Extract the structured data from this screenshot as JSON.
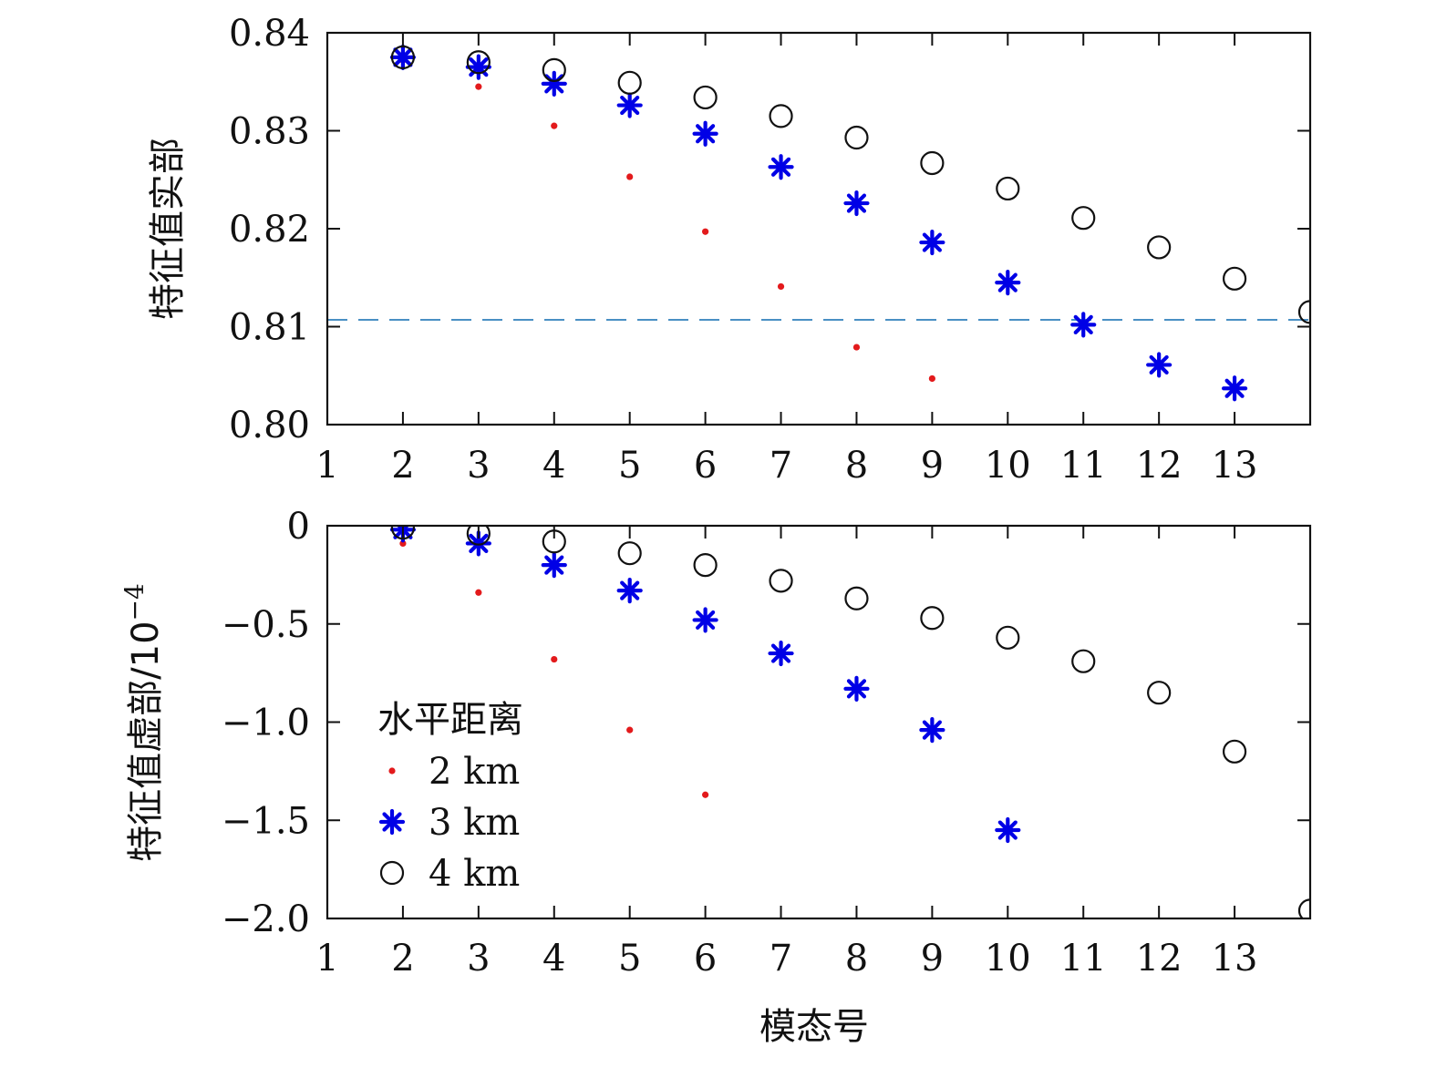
{
  "chart_data": [
    {
      "type": "scatter",
      "x": [
        2,
        3,
        4,
        5,
        6,
        7,
        8,
        9,
        10,
        11,
        12,
        13,
        14
      ],
      "xlim": [
        1,
        14
      ],
      "xticks": [
        1,
        2,
        3,
        4,
        5,
        6,
        7,
        8,
        9,
        10,
        11,
        12,
        13
      ],
      "xtick_labels": [
        "1",
        "2",
        "3",
        "4",
        "5",
        "6",
        "7",
        "8",
        "9",
        "10",
        "11",
        "12",
        "13"
      ],
      "ylim": [
        0.8,
        0.84
      ],
      "yticks": [
        0.8,
        0.81,
        0.82,
        0.83,
        0.84
      ],
      "ytick_labels": [
        "0.80",
        "0.81",
        "0.82",
        "0.83",
        "0.84"
      ],
      "ylabel": "特征值实部",
      "xlabel": "",
      "reference_line": {
        "y": 0.8107,
        "style": "dashed",
        "color": "#4a8fc4"
      },
      "series": [
        {
          "name": "2 km",
          "marker": "dot",
          "color": "#e31a1c",
          "values": [
            0.8372,
            0.8345,
            0.8305,
            0.8253,
            0.8197,
            0.8141,
            0.8079,
            0.8047
          ]
        },
        {
          "name": "3 km",
          "marker": "star",
          "color": "#0000e6",
          "values": [
            0.8375,
            0.8365,
            0.8348,
            0.8326,
            0.8297,
            0.8263,
            0.8226,
            0.8186,
            0.8145,
            0.8102,
            0.8061,
            0.8037
          ]
        },
        {
          "name": "4 km",
          "marker": "circle",
          "color": "#111111",
          "values": [
            0.8375,
            0.837,
            0.8362,
            0.8349,
            0.8334,
            0.8315,
            0.8293,
            0.8267,
            0.8241,
            0.8211,
            0.8181,
            0.8149,
            0.8115
          ]
        }
      ]
    },
    {
      "type": "scatter",
      "x": [
        2,
        3,
        4,
        5,
        6,
        7,
        8,
        9,
        10,
        11,
        12,
        13,
        14
      ],
      "xlim": [
        1,
        14
      ],
      "xticks": [
        1,
        2,
        3,
        4,
        5,
        6,
        7,
        8,
        9,
        10,
        11,
        12,
        13
      ],
      "xtick_labels": [
        "1",
        "2",
        "3",
        "4",
        "5",
        "6",
        "7",
        "8",
        "9",
        "10",
        "11",
        "12",
        "13"
      ],
      "ylim": [
        -2.0,
        0
      ],
      "yticks": [
        0,
        -0.5,
        -1.0,
        -1.5,
        -2.0
      ],
      "ytick_labels": [
        "0",
        "−0.5",
        "−1.0",
        "−1.5",
        "−2.0"
      ],
      "ylabel": "特征值虚部/10",
      "ylabel_exponent": "−4",
      "xlabel": "模态号",
      "series": [
        {
          "name": "2 km",
          "marker": "dot",
          "color": "#e31a1c",
          "values": [
            -0.09,
            -0.34,
            -0.68,
            -1.04,
            -1.37
          ]
        },
        {
          "name": "3 km",
          "marker": "star",
          "color": "#0000e6",
          "values": [
            -0.02,
            -0.09,
            -0.2,
            -0.33,
            -0.48,
            -0.65,
            -0.83,
            -1.04,
            -1.55
          ]
        },
        {
          "name": "4 km",
          "marker": "circle",
          "color": "#111111",
          "values": [
            -0.01,
            -0.04,
            -0.08,
            -0.14,
            -0.2,
            -0.28,
            -0.37,
            -0.47,
            -0.57,
            -0.69,
            -0.85,
            -1.15,
            -1.96
          ]
        }
      ]
    }
  ],
  "legend": {
    "title": "水平距离",
    "placement": "lower-left",
    "entries": [
      {
        "label": "2 km",
        "marker": "dot",
        "color": "#e31a1c"
      },
      {
        "label": "3 km",
        "marker": "star",
        "color": "#0000e6"
      },
      {
        "label": "4 km",
        "marker": "circle",
        "color": "#111111"
      }
    ]
  }
}
